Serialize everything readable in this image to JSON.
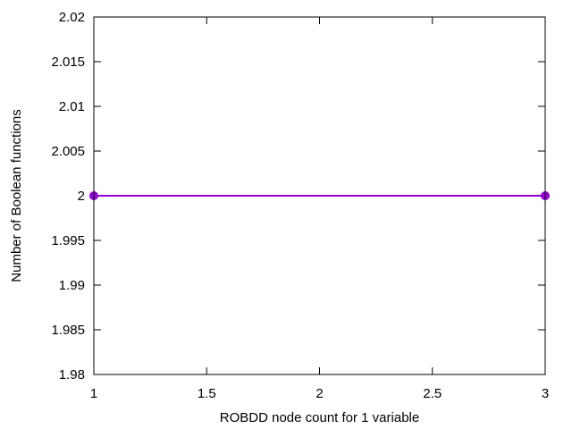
{
  "chart_data": {
    "type": "line",
    "xlabel": "ROBDD node count for 1 variable",
    "ylabel": "Number of Boolean functions",
    "xlim": [
      1,
      3
    ],
    "ylim": [
      1.98,
      2.02
    ],
    "x_ticks": [
      1,
      1.5,
      2,
      2.5,
      3
    ],
    "x_tick_labels": [
      "1",
      "1.5",
      "2",
      "2.5",
      "3"
    ],
    "y_ticks": [
      1.98,
      1.985,
      1.99,
      1.995,
      2,
      2.005,
      2.01,
      2.015,
      2.02
    ],
    "y_tick_labels": [
      "1.98",
      "1.985",
      "1.99",
      "1.995",
      "2",
      "2.005",
      "2.01",
      "2.015",
      "2.02"
    ],
    "grid": false,
    "legend": "none",
    "series": [
      {
        "color": "#9400d3",
        "marker": "circle",
        "x": [
          1,
          3
        ],
        "y": [
          2,
          2
        ]
      }
    ]
  }
}
